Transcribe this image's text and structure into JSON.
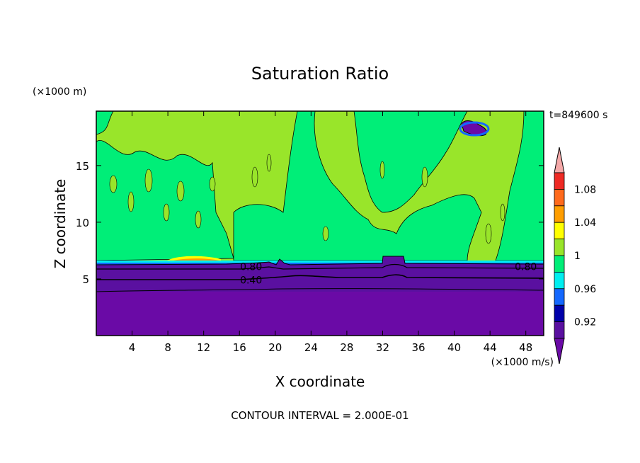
{
  "chart_data": {
    "type": "heatmap",
    "title": "Saturation Ratio",
    "xlabel": "X coordinate",
    "ylabel": "Z coordinate",
    "x_unit": "(×1000 m/s)",
    "y_unit": "(×1000 m)",
    "time_label": "t=849600 s",
    "footer": "CONTOUR INTERVAL = 2.000E-01",
    "xlim": [
      0,
      50
    ],
    "ylim": [
      0,
      19.8
    ],
    "x_ticks": [
      4,
      8,
      12,
      16,
      20,
      24,
      28,
      32,
      36,
      40,
      44,
      48
    ],
    "y_ticks": [
      5,
      10,
      15
    ],
    "contour_labels": [
      {
        "text": "0.80",
        "x": 17.3,
        "z": 6.1
      },
      {
        "text": "0.40",
        "x": 17.3,
        "z": 4.9
      },
      {
        "text": "0.80",
        "x": 48.0,
        "z": 6.1
      }
    ],
    "colorbar": {
      "levels": [
        {
          "label": "",
          "color": "#f4a8a8"
        },
        {
          "label": "1.08",
          "color": "#ee2a24"
        },
        {
          "label": "",
          "color": "#ff6a1c"
        },
        {
          "label": "1.04",
          "color": "#ff9e00"
        },
        {
          "label": "",
          "color": "#ffff00"
        },
        {
          "label": "1",
          "color": "#99e52a"
        },
        {
          "label": "",
          "color": "#00ee78"
        },
        {
          "label": "0.96",
          "color": "#00eef0"
        },
        {
          "label": "",
          "color": "#1468ff"
        },
        {
          "label": "0.92",
          "color": "#0000aa"
        },
        {
          "label": "",
          "color": "#5a10a0"
        },
        {
          "label": "",
          "color": "#6a0aa6"
        }
      ]
    }
  }
}
